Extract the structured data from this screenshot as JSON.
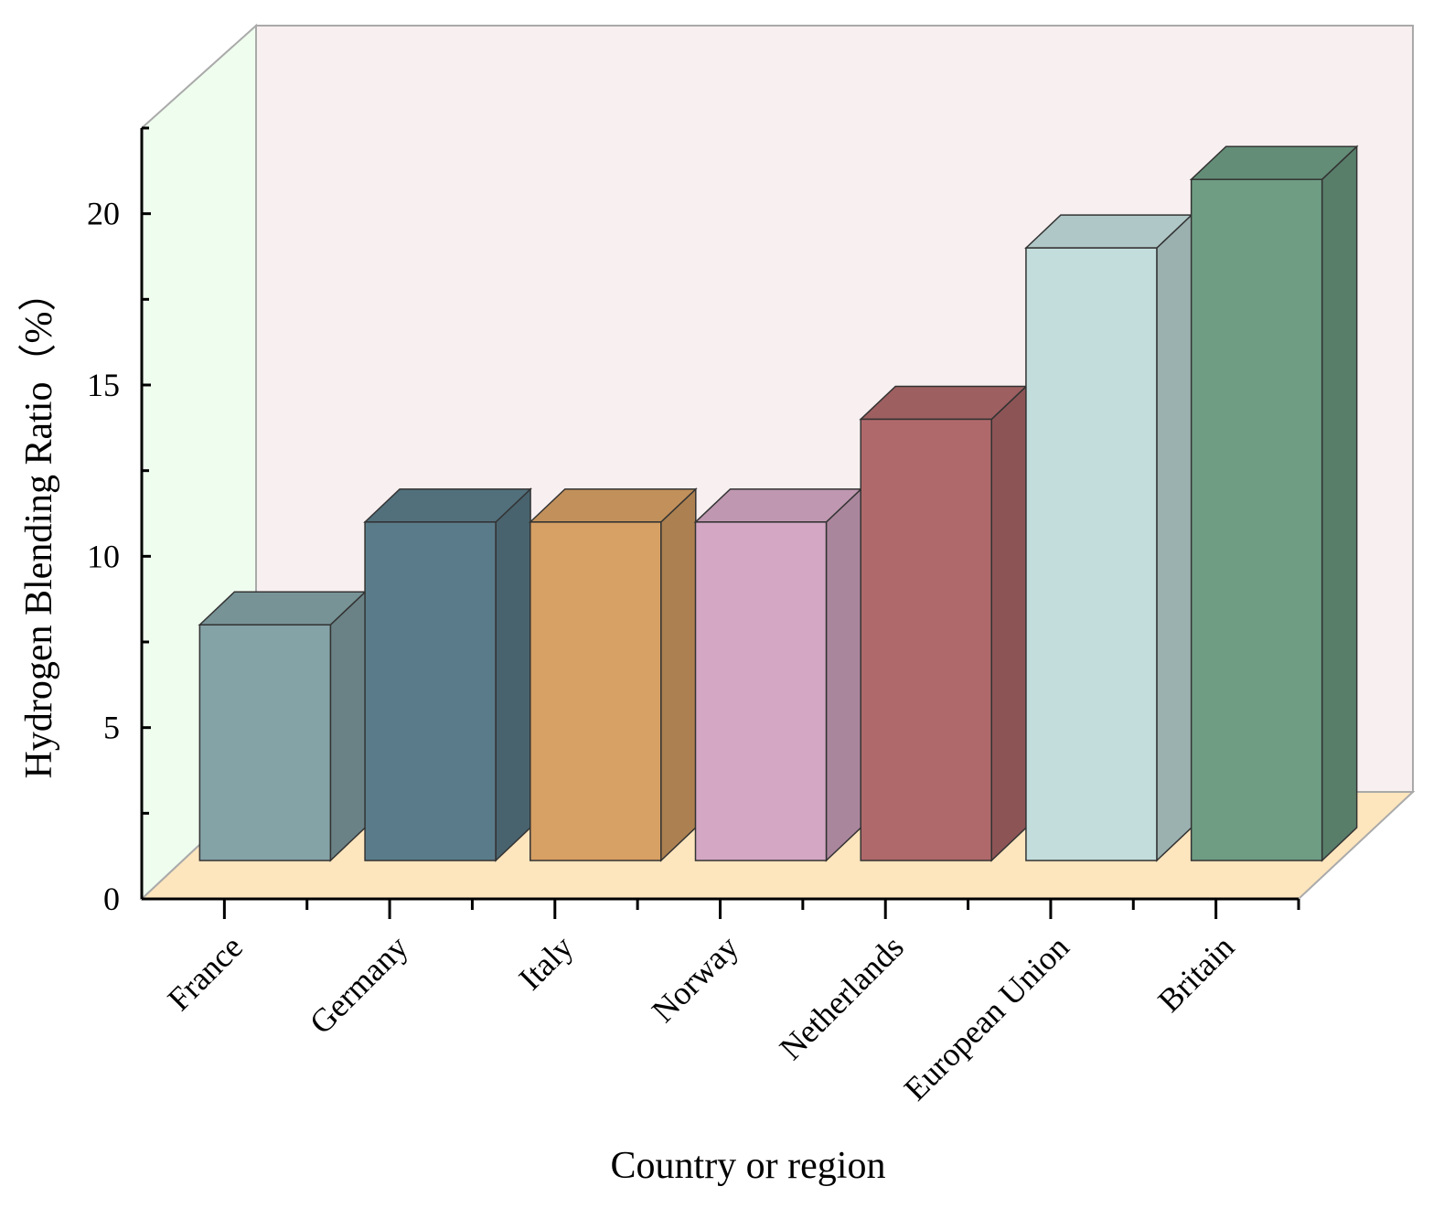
{
  "chart_data": {
    "type": "bar3d",
    "x_label": "Country or region",
    "y_label": "Hydrogen Blending Ratio（%）",
    "categories": [
      "France",
      "Germany",
      "Italy",
      "Norway",
      "Netherlands",
      "European Union",
      "Britain"
    ],
    "values": [
      8,
      11,
      11,
      11,
      14,
      19,
      21
    ],
    "colors": [
      "#84a3a7",
      "#5a7c8a",
      "#d7a064",
      "#d4a8c4",
      "#b0696b",
      "#c2dddc",
      "#6e9d84"
    ],
    "ylim": [
      0,
      22.5
    ],
    "yticks": [
      0,
      5,
      10,
      15,
      20
    ],
    "yminor": [
      2.5,
      7.5,
      12.5,
      17.5,
      22.5
    ]
  }
}
